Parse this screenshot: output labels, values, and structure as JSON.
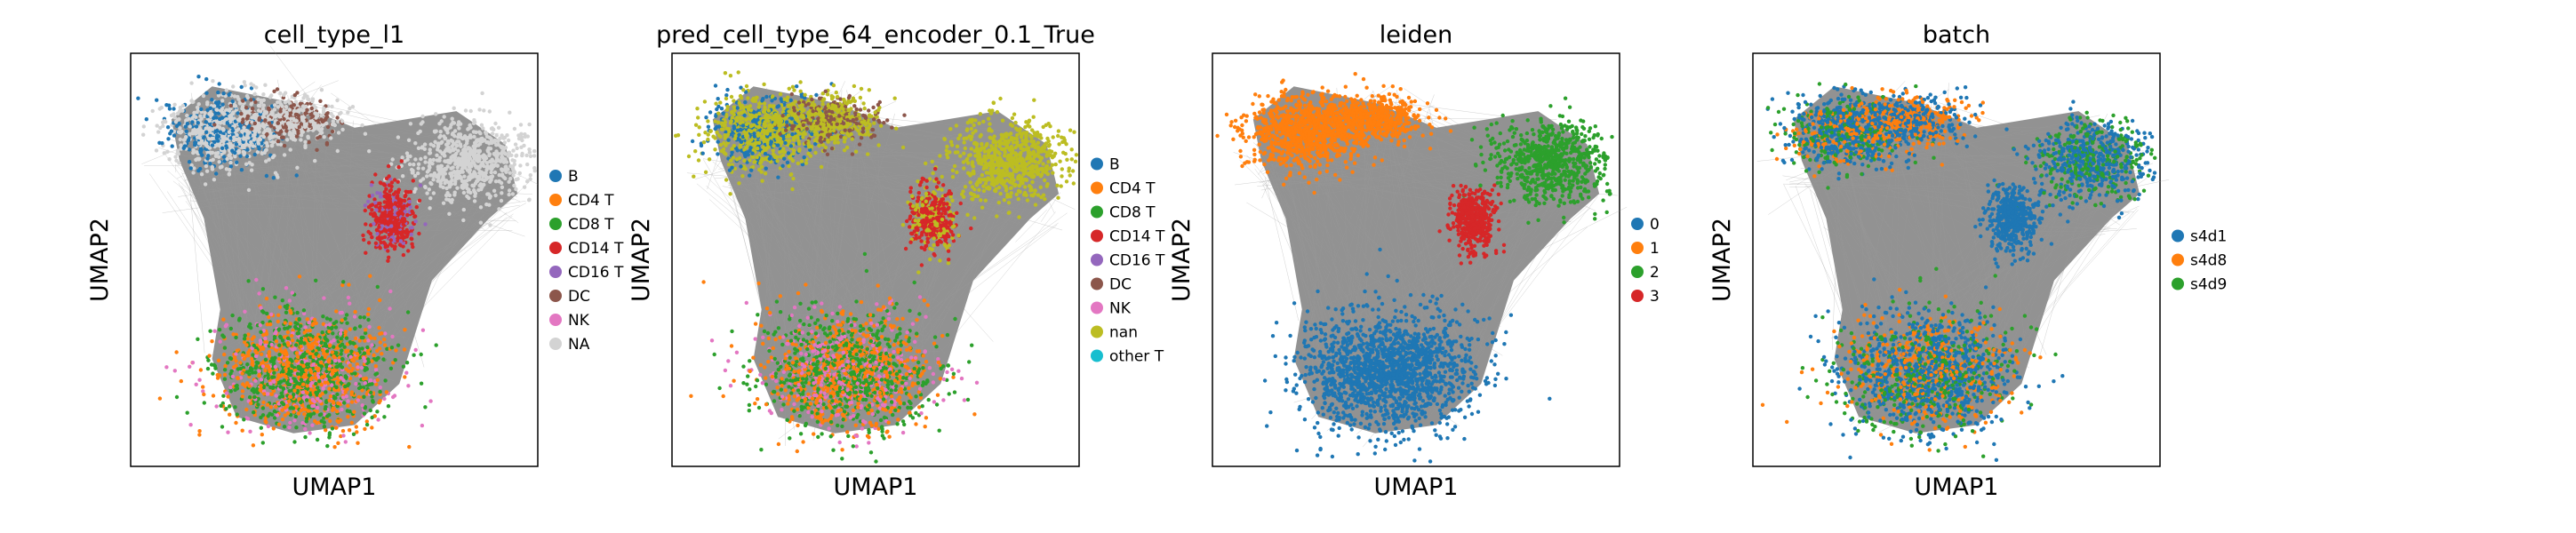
{
  "chart_data": [
    {
      "type": "scatter",
      "title": "cell_type_l1",
      "xlabel": "UMAP1",
      "ylabel": "UMAP2",
      "grid": false,
      "legend_placement": "right",
      "legend": [
        {
          "name": "B",
          "color": "#1f77b4"
        },
        {
          "name": "CD4 T",
          "color": "#ff7f0e"
        },
        {
          "name": "CD8 T",
          "color": "#2ca02c"
        },
        {
          "name": "CD14 T",
          "color": "#d62728"
        },
        {
          "name": "CD16 T",
          "color": "#9467bd"
        },
        {
          "name": "DC",
          "color": "#8c564b"
        },
        {
          "name": "NK",
          "color": "#e377c2"
        },
        {
          "name": "NA",
          "color": "#d3d3d3"
        }
      ]
    },
    {
      "type": "scatter",
      "title": "pred_cell_type_64_encoder_0.1_True",
      "xlabel": "UMAP1",
      "ylabel": "UMAP2",
      "grid": false,
      "legend_placement": "right",
      "legend": [
        {
          "name": "B",
          "color": "#1f77b4"
        },
        {
          "name": "CD4 T",
          "color": "#ff7f0e"
        },
        {
          "name": "CD8 T",
          "color": "#2ca02c"
        },
        {
          "name": "CD14 T",
          "color": "#d62728"
        },
        {
          "name": "CD16 T",
          "color": "#9467bd"
        },
        {
          "name": "DC",
          "color": "#8c564b"
        },
        {
          "name": "NK",
          "color": "#e377c2"
        },
        {
          "name": "nan",
          "color": "#bcbd22"
        },
        {
          "name": "other T",
          "color": "#17becf"
        }
      ]
    },
    {
      "type": "scatter",
      "title": "leiden",
      "xlabel": "UMAP1",
      "ylabel": "UMAP2",
      "grid": false,
      "legend_placement": "right",
      "legend": [
        {
          "name": "0",
          "color": "#1f77b4"
        },
        {
          "name": "1",
          "color": "#ff7f0e"
        },
        {
          "name": "2",
          "color": "#2ca02c"
        },
        {
          "name": "3",
          "color": "#d62728"
        }
      ]
    },
    {
      "type": "scatter",
      "title": "batch",
      "xlabel": "UMAP1",
      "ylabel": "UMAP2",
      "grid": false,
      "legend_placement": "right",
      "legend": [
        {
          "name": "s4d1",
          "color": "#1f77b4"
        },
        {
          "name": "s4d8",
          "color": "#ff7f0e"
        },
        {
          "name": "s4d9",
          "color": "#2ca02c"
        }
      ]
    }
  ]
}
